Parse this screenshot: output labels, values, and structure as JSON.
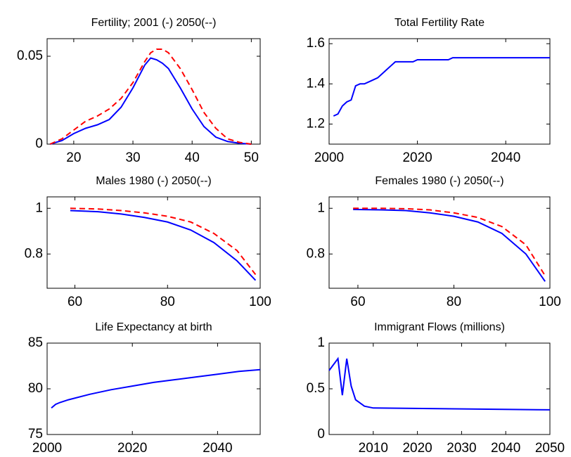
{
  "chart_data": [
    {
      "type": "line",
      "title": "Fertility; 2001 (-) 2050(--)",
      "x": [
        16,
        18,
        20,
        22,
        24,
        26,
        28,
        30,
        32,
        33,
        34,
        35,
        36,
        38,
        40,
        42,
        44,
        46,
        48,
        50
      ],
      "series": [
        {
          "color": "#0000ff",
          "linestyle": "solid",
          "values": [
            0,
            0.002,
            0.006,
            0.009,
            0.011,
            0.014,
            0.021,
            0.032,
            0.045,
            0.049,
            0.048,
            0.046,
            0.043,
            0.032,
            0.02,
            0.01,
            0.004,
            0.0015,
            0.0005,
            0
          ]
        },
        {
          "color": "#ff0000",
          "linestyle": "dashed",
          "values": [
            0,
            0.003,
            0.008,
            0.013,
            0.016,
            0.02,
            0.026,
            0.035,
            0.047,
            0.052,
            0.054,
            0.054,
            0.052,
            0.043,
            0.031,
            0.018,
            0.009,
            0.003,
            0.001,
            0
          ]
        }
      ],
      "xlim": [
        15.5,
        51.5
      ],
      "xticks": [
        20,
        30,
        40,
        50
      ],
      "ylim": [
        0,
        0.06
      ],
      "yticks": [
        0,
        0.05
      ]
    },
    {
      "type": "line",
      "title": "Total Fertility Rate",
      "x": [
        2001,
        2002,
        2003,
        2004,
        2005,
        2006,
        2007,
        2008,
        2009,
        2010,
        2011,
        2012,
        2013,
        2014,
        2015,
        2019,
        2020,
        2027,
        2028,
        2050
      ],
      "series": [
        {
          "color": "#0000ff",
          "linestyle": "solid",
          "values": [
            1.24,
            1.25,
            1.29,
            1.31,
            1.32,
            1.39,
            1.4,
            1.4,
            1.41,
            1.42,
            1.43,
            1.45,
            1.47,
            1.49,
            1.51,
            1.51,
            1.52,
            1.52,
            1.53,
            1.53
          ]
        }
      ],
      "xlim": [
        2000,
        2050
      ],
      "xticks": [
        2000,
        2020,
        2040
      ],
      "ylim": [
        1.1,
        1.625
      ],
      "yticks": [
        1.2,
        1.4,
        1.6
      ]
    },
    {
      "type": "line",
      "title": "Males 1980 (-) 2050(--)",
      "x": [
        59,
        65,
        70,
        75,
        80,
        85,
        90,
        95,
        99
      ],
      "series": [
        {
          "color": "#0000ff",
          "linestyle": "solid",
          "values": [
            0.99,
            0.985,
            0.975,
            0.96,
            0.94,
            0.905,
            0.85,
            0.77,
            0.685
          ]
        },
        {
          "color": "#ff0000",
          "linestyle": "dashed",
          "values": [
            1.0,
            0.997,
            0.99,
            0.98,
            0.965,
            0.94,
            0.89,
            0.815,
            0.71
          ]
        }
      ],
      "xlim": [
        54,
        100
      ],
      "xticks": [
        60,
        80,
        100
      ],
      "ylim": [
        0.65,
        1.05
      ],
      "yticks": [
        0.8,
        1
      ]
    },
    {
      "type": "line",
      "title": "Females 1980 (-) 2050(--)",
      "x": [
        59,
        65,
        70,
        75,
        80,
        85,
        90,
        95,
        99
      ],
      "series": [
        {
          "color": "#0000ff",
          "linestyle": "solid",
          "values": [
            0.995,
            0.993,
            0.99,
            0.98,
            0.965,
            0.94,
            0.89,
            0.8,
            0.68
          ]
        },
        {
          "color": "#ff0000",
          "linestyle": "dashed",
          "values": [
            1.0,
            1.0,
            0.998,
            0.993,
            0.98,
            0.96,
            0.92,
            0.84,
            0.705
          ]
        }
      ],
      "xlim": [
        54,
        100
      ],
      "xticks": [
        60,
        80,
        100
      ],
      "ylim": [
        0.65,
        1.05
      ],
      "yticks": [
        0.8,
        1
      ]
    },
    {
      "type": "line",
      "title": "Life Expectancy at birth",
      "x": [
        2001,
        2002,
        2003,
        2005,
        2010,
        2015,
        2020,
        2025,
        2030,
        2035,
        2040,
        2045,
        2050
      ],
      "series": [
        {
          "color": "#0000ff",
          "linestyle": "solid",
          "values": [
            77.9,
            78.3,
            78.5,
            78.8,
            79.4,
            79.9,
            80.3,
            80.7,
            81.0,
            81.3,
            81.6,
            81.9,
            82.1
          ]
        }
      ],
      "xlim": [
        2000,
        2050
      ],
      "xticks": [
        2000,
        2020,
        2040
      ],
      "ylim": [
        75,
        85
      ],
      "yticks": [
        75,
        80,
        85
      ]
    },
    {
      "type": "line",
      "title": "Immigrant Flows (millions)",
      "x": [
        2000,
        2002,
        2003,
        2004,
        2005,
        2006,
        2008,
        2010,
        2050
      ],
      "series": [
        {
          "color": "#0000ff",
          "linestyle": "solid",
          "values": [
            0.7,
            0.83,
            0.43,
            0.83,
            0.53,
            0.38,
            0.31,
            0.29,
            0.27
          ]
        }
      ],
      "xlim": [
        2000,
        2050
      ],
      "xticks": [
        2010,
        2020,
        2030,
        2040,
        2050
      ],
      "ylim": [
        0,
        1
      ],
      "yticks": [
        0,
        0.5,
        1
      ]
    }
  ]
}
